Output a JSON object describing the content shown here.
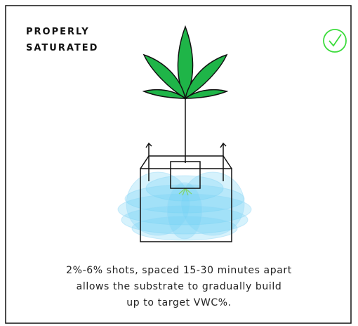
{
  "header": {
    "title_lines": [
      "PROPERLY",
      "SATURATED"
    ]
  },
  "description": {
    "lines": [
      "2%-6% shots, spaced 15-30 minutes apart",
      "allows the substrate to gradually build",
      "up to target VWC%."
    ]
  }
}
